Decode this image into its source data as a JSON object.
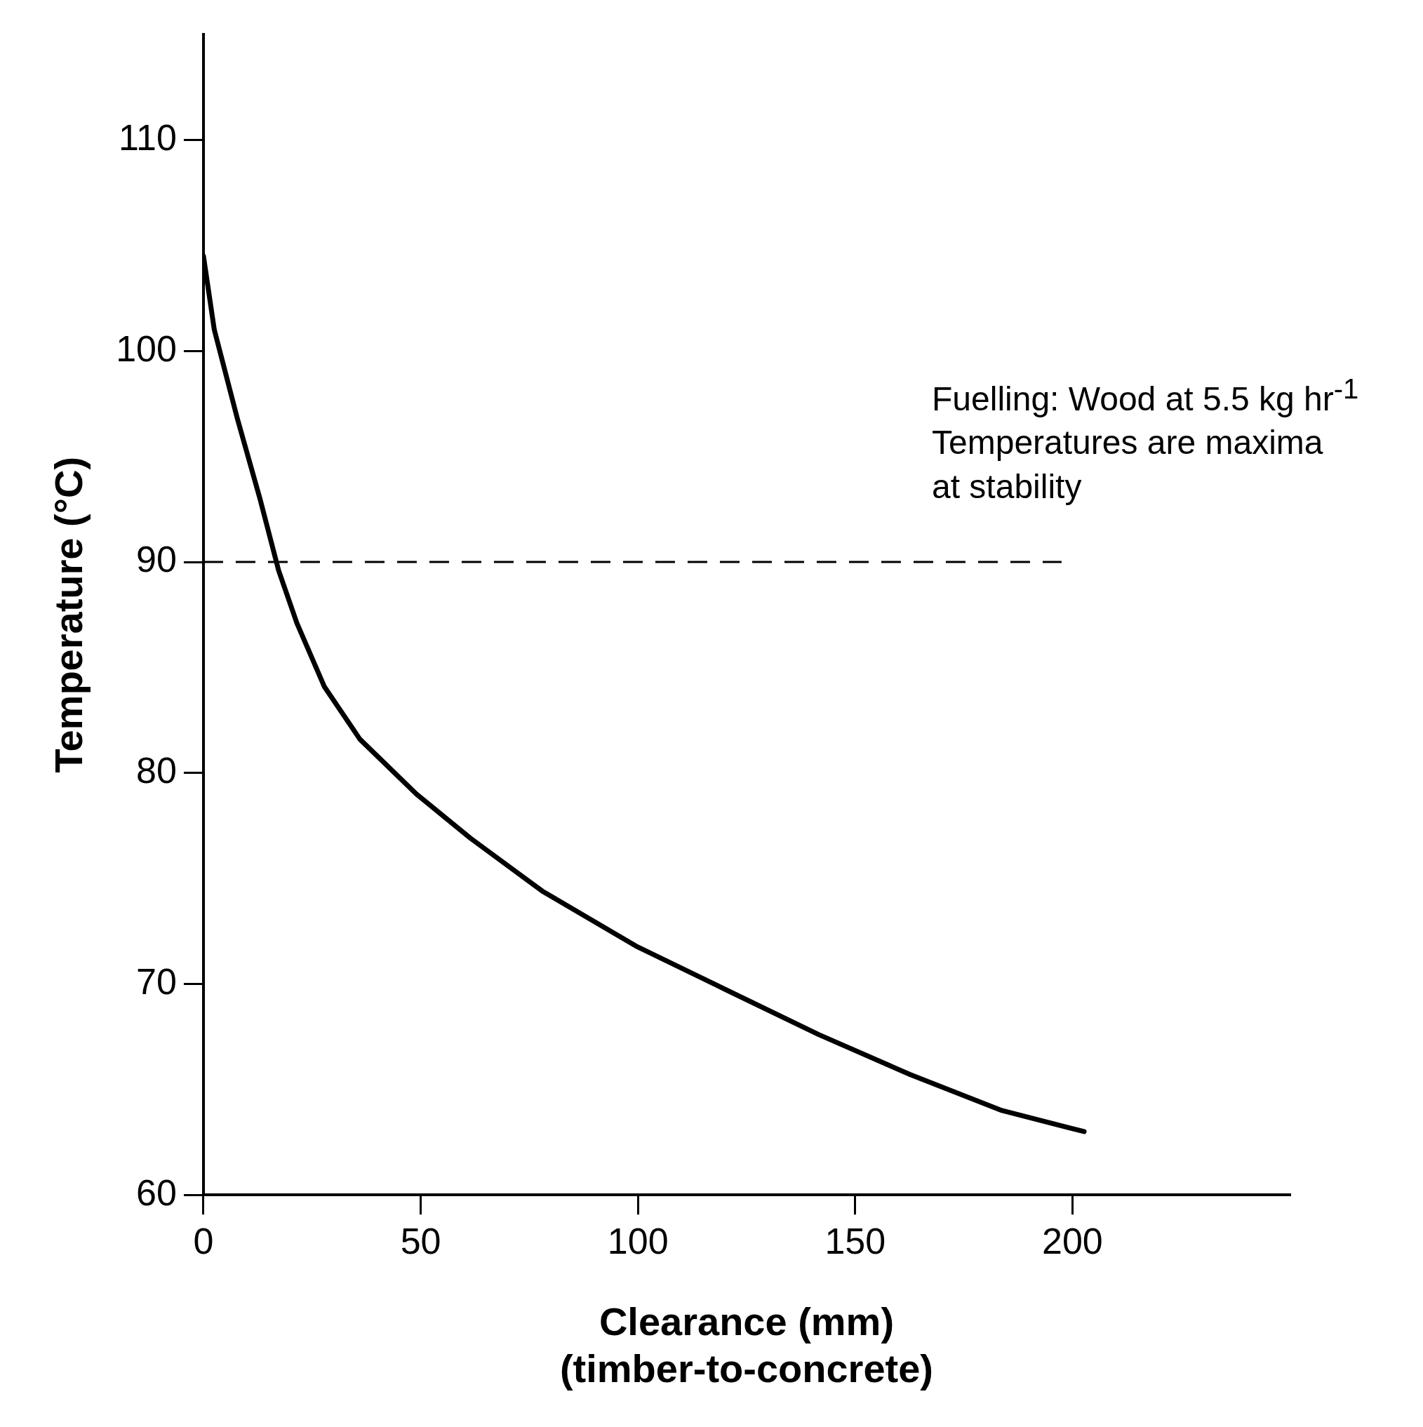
{
  "chart_data": {
    "type": "line",
    "xlabel": "Clearance (mm)\n(timber-to-concrete)",
    "ylabel": "Temperature (°C)",
    "x": [
      0,
      2.5,
      7.8,
      13,
      17.3,
      21.5,
      27.8,
      36,
      49,
      61.5,
      78,
      99.5,
      120.5,
      141.6,
      162.7,
      183.8,
      202.7
    ],
    "series": [
      {
        "color": "#000000",
        "values": [
          104.5,
          101,
          96.8,
          93,
          89.6,
          87.1,
          84.1,
          81.6,
          79,
          76.9,
          74.4,
          71.8,
          69.7,
          67.6,
          65.7,
          64,
          63
        ]
      }
    ],
    "xlim": [
      0,
      250
    ],
    "xticks": [
      0,
      50,
      100,
      150,
      200
    ],
    "ylim": [
      60,
      115
    ],
    "yticks": [
      60,
      70,
      80,
      90,
      100,
      110
    ],
    "ref_lines": [
      {
        "axis": "y",
        "value": 90,
        "line_style": "dashed",
        "color": "#000000"
      }
    ],
    "annotations": [
      "Fuelling: Wood at 5.5 kg hr$^{-1}$\nTemperatures are maxima\nat stability"
    ],
    "grid": false,
    "legend": false,
    "marker": "none",
    "line_style": "solid"
  }
}
